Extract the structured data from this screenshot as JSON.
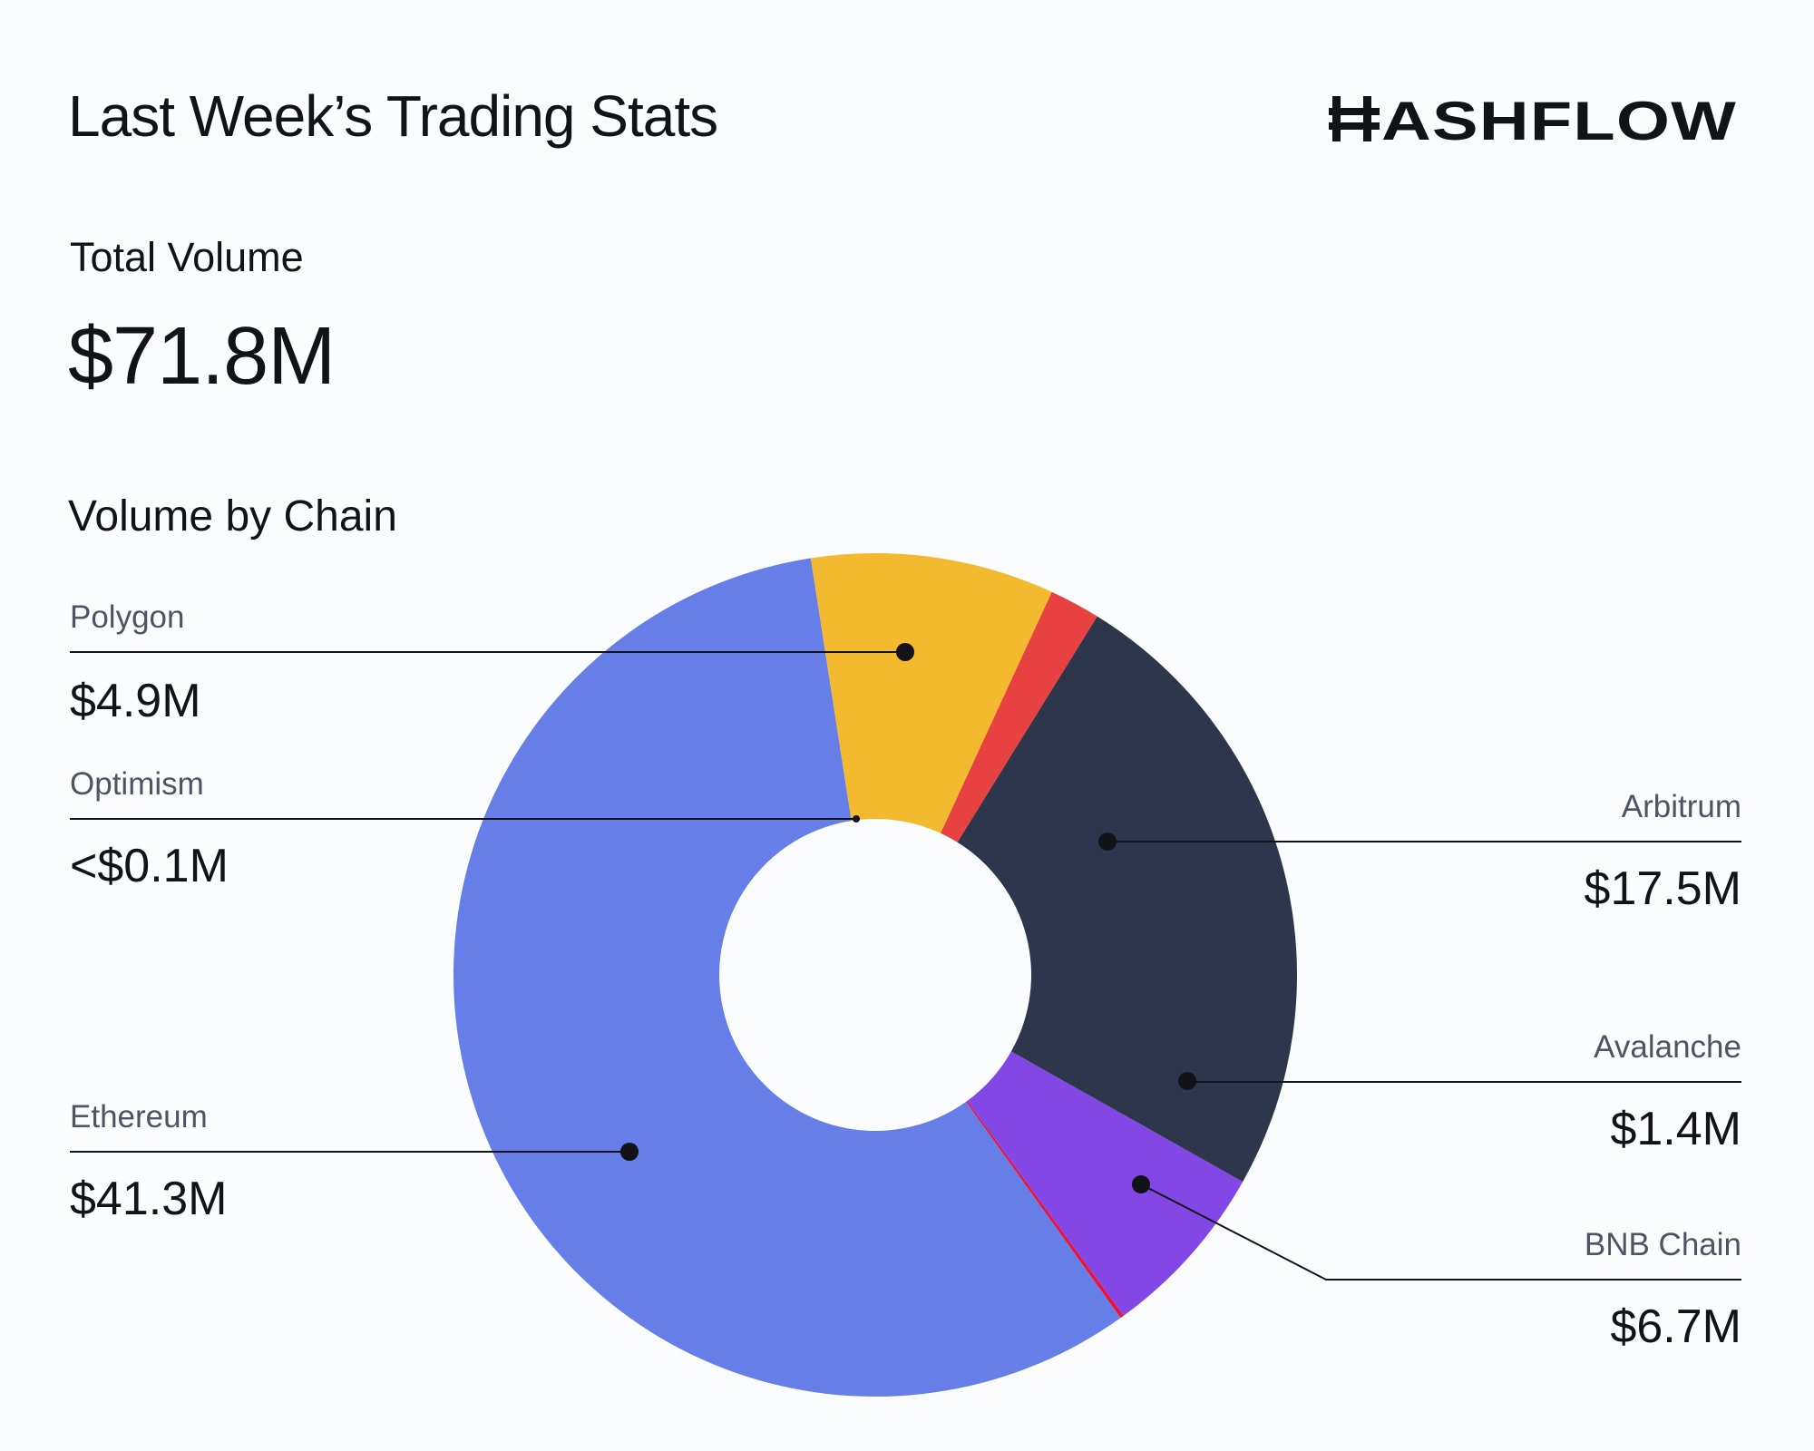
{
  "header": {
    "title": "Last Week’s Trading Stats",
    "brand": "HASHFLOW"
  },
  "summary": {
    "total_label": "Total Volume",
    "total_value": "$71.8M"
  },
  "chart_data": {
    "type": "pie",
    "title": "Volume by Chain",
    "unit": "$M",
    "donut": true,
    "series": [
      {
        "name": "Ethereum",
        "value": 41.3,
        "label": "$41.3M",
        "color": "#657ee8"
      },
      {
        "name": "Optimism",
        "value": 0.1,
        "label": "<$0.1M",
        "color": "#ee1133"
      },
      {
        "name": "Polygon",
        "value": 4.9,
        "label": "$4.9M",
        "color": "#8247e5"
      },
      {
        "name": "Arbitrum",
        "value": 17.5,
        "label": "$17.5M",
        "color": "#2d364b"
      },
      {
        "name": "Avalanche",
        "value": 1.4,
        "label": "$1.4M",
        "color": "#e84142"
      },
      {
        "name": "BNB Chain",
        "value": 6.7,
        "label": "$6.7M",
        "color": "#f3ba2f"
      }
    ]
  }
}
